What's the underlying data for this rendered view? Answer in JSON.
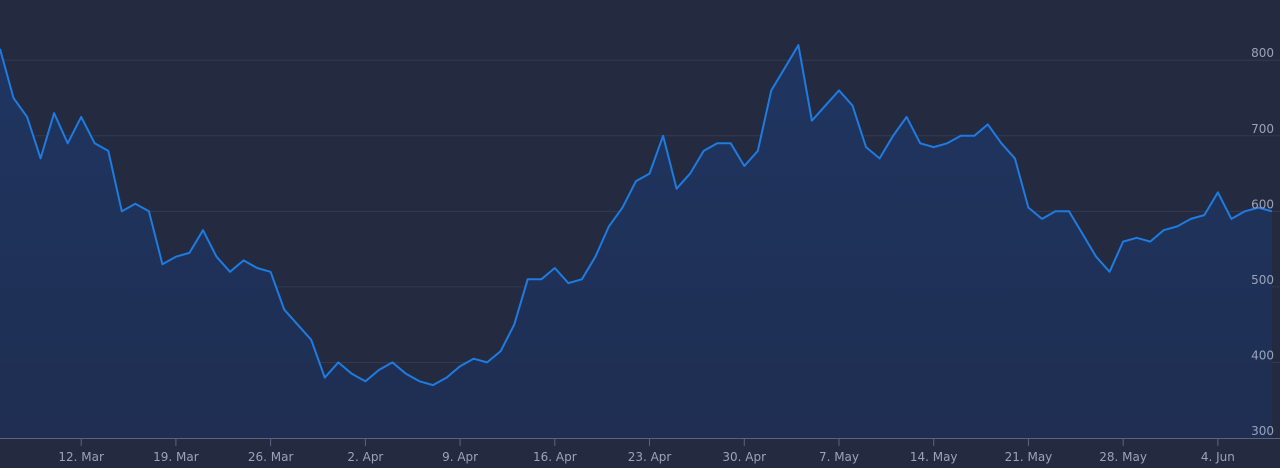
{
  "colors": {
    "background": "#242b40",
    "grid": "#323a52",
    "axis": "#5a6480",
    "line": "#1e7be0",
    "area_top": "#1f3560",
    "area_bottom": "#1f2e52",
    "tick_text": "#9aa3b8"
  },
  "chart_data": {
    "type": "area",
    "title": "",
    "xlabel": "",
    "ylabel": "",
    "x_start": "2018-03-06",
    "x_end": "2018-06-08",
    "xlim": [
      "2018-03-06",
      "2018-06-08"
    ],
    "ylim": [
      300,
      840
    ],
    "y_ticks": [
      300,
      400,
      500,
      600,
      700,
      800
    ],
    "y_tick_labels": [
      "300",
      "400",
      "500",
      "600",
      "700",
      "800"
    ],
    "x_ticks": [
      "2018-03-12",
      "2018-03-19",
      "2018-03-26",
      "2018-04-02",
      "2018-04-09",
      "2018-04-16",
      "2018-04-23",
      "2018-04-30",
      "2018-05-07",
      "2018-05-14",
      "2018-05-21",
      "2018-05-28",
      "2018-06-04"
    ],
    "x_tick_labels": [
      "12. Mar",
      "19. Mar",
      "26. Mar",
      "2. Apr",
      "9. Apr",
      "16. Apr",
      "23. Apr",
      "30. Apr",
      "7. May",
      "14. May",
      "21. May",
      "28. May",
      "4. Jun"
    ],
    "grid": true,
    "legend": "none",
    "series": [
      {
        "x": [
          "2018-03-06",
          "2018-03-07",
          "2018-03-08",
          "2018-03-09",
          "2018-03-10",
          "2018-03-11",
          "2018-03-12",
          "2018-03-13",
          "2018-03-14",
          "2018-03-15",
          "2018-03-16",
          "2018-03-17",
          "2018-03-18",
          "2018-03-19",
          "2018-03-20",
          "2018-03-21",
          "2018-03-22",
          "2018-03-23",
          "2018-03-24",
          "2018-03-25",
          "2018-03-26",
          "2018-03-27",
          "2018-03-28",
          "2018-03-29",
          "2018-03-30",
          "2018-03-31",
          "2018-04-01",
          "2018-04-02",
          "2018-04-03",
          "2018-04-04",
          "2018-04-05",
          "2018-04-06",
          "2018-04-07",
          "2018-04-08",
          "2018-04-09",
          "2018-04-10",
          "2018-04-11",
          "2018-04-12",
          "2018-04-13",
          "2018-04-14",
          "2018-04-15",
          "2018-04-16",
          "2018-04-17",
          "2018-04-18",
          "2018-04-19",
          "2018-04-20",
          "2018-04-21",
          "2018-04-22",
          "2018-04-23",
          "2018-04-24",
          "2018-04-25",
          "2018-04-26",
          "2018-04-27",
          "2018-04-28",
          "2018-04-29",
          "2018-04-30",
          "2018-05-01",
          "2018-05-02",
          "2018-05-03",
          "2018-05-04",
          "2018-05-05",
          "2018-05-06",
          "2018-05-07",
          "2018-05-08",
          "2018-05-09",
          "2018-05-10",
          "2018-05-11",
          "2018-05-12",
          "2018-05-13",
          "2018-05-14",
          "2018-05-15",
          "2018-05-16",
          "2018-05-17",
          "2018-05-18",
          "2018-05-19",
          "2018-05-20",
          "2018-05-21",
          "2018-05-22",
          "2018-05-23",
          "2018-05-24",
          "2018-05-25",
          "2018-05-26",
          "2018-05-27",
          "2018-05-28",
          "2018-05-29",
          "2018-05-30",
          "2018-05-31",
          "2018-06-01",
          "2018-06-02",
          "2018-06-03",
          "2018-06-04",
          "2018-06-05",
          "2018-06-06",
          "2018-06-07",
          "2018-06-08"
        ],
        "values": [
          815,
          750,
          725,
          670,
          730,
          690,
          725,
          690,
          680,
          600,
          610,
          600,
          530,
          540,
          545,
          575,
          540,
          520,
          535,
          525,
          520,
          470,
          450,
          430,
          380,
          400,
          385,
          375,
          390,
          400,
          385,
          375,
          370,
          380,
          395,
          405,
          400,
          415,
          450,
          510,
          510,
          525,
          505,
          510,
          540,
          580,
          605,
          640,
          650,
          700,
          630,
          650,
          680,
          690,
          690,
          660,
          680,
          760,
          790,
          820,
          720,
          740,
          760,
          740,
          685,
          670,
          700,
          725,
          690,
          685,
          690,
          700,
          700,
          715,
          690,
          670,
          605,
          590,
          600,
          600,
          570,
          540,
          520,
          560,
          565,
          560,
          575,
          580,
          590,
          595,
          625,
          590,
          600,
          605,
          600
        ]
      }
    ]
  }
}
